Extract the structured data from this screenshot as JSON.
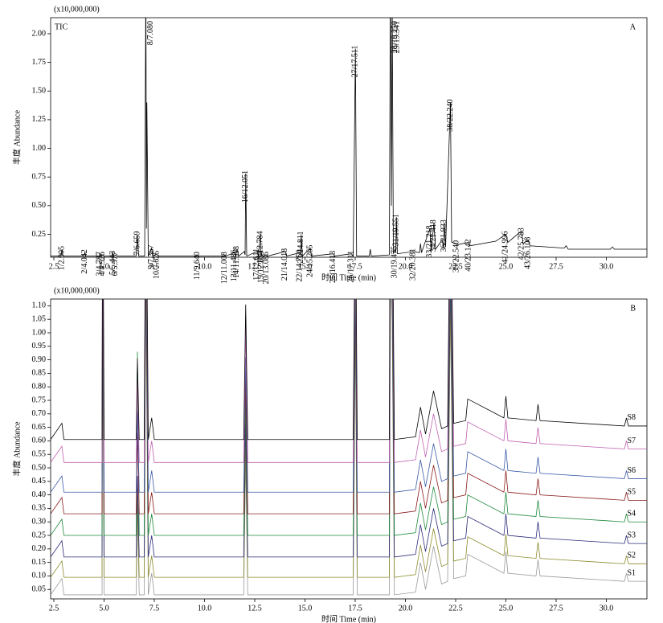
{
  "chart_data": [
    {
      "type": "line",
      "panel_label": "A",
      "scale_label": "(x10,000,000)",
      "xlabel": "时间 Time (min)",
      "ylabel": "丰度 Abundance",
      "xlim": [
        2.34,
        32.02
      ],
      "ylim": [
        0.05,
        2.14
      ],
      "xticks": [
        2.5,
        {
          "value": 5,
          "label": "5.0"
        },
        7.5,
        {
          "value": 10,
          "label": "10.0"
        },
        12.5,
        {
          "value": 15,
          "label": "15.0"
        },
        17.5,
        {
          "value": 20,
          "label": "20.0"
        },
        22.5,
        {
          "value": 25,
          "label": "25.0"
        },
        27.5,
        {
          "value": 30,
          "label": "30.0"
        }
      ],
      "yticks": [
        0.25,
        {
          "value": 0.5,
          "label": "0.50"
        },
        0.75,
        {
          "value": 1,
          "label": "1.00"
        },
        1.25,
        {
          "value": 1.5,
          "label": "1.50"
        },
        1.75,
        {
          "value": 2,
          "label": "2.00"
        }
      ],
      "x": [
        2.34,
        2.85,
        2.905,
        2.95,
        3.99,
        4.042,
        4.09,
        4.75,
        4.787,
        4.86,
        4.926,
        5.0,
        5.4,
        5.443,
        5.5,
        5.577,
        5.65,
        6.6,
        6.659,
        6.72,
        7.02,
        7.08,
        7.11,
        7.13,
        7.2,
        7.367,
        7.42,
        7.625,
        7.68,
        9.6,
        9.64,
        9.7,
        10.97,
        11.008,
        11.05,
        11.486,
        11.55,
        11.618,
        11.7,
        11.98,
        12.02,
        12.051,
        12.1,
        12.611,
        12.68,
        12.784,
        12.81,
        12.834,
        12.9,
        13.086,
        13.15,
        14.018,
        14.08,
        14.75,
        14.78,
        14.811,
        14.87,
        15.265,
        15.32,
        16.413,
        16.47,
        17.311,
        17.4,
        17.511,
        17.57,
        18.2,
        18.25,
        18.3,
        19.2,
        19.25,
        19.3,
        19.341,
        19.4,
        19.475,
        19.52,
        19.551,
        19.6,
        20.381,
        20.7,
        20.75,
        20.8,
        21.218,
        21.28,
        21.418,
        21.5,
        21.829,
        21.9,
        21.933,
        22.0,
        22.24,
        22.3,
        22.54,
        22.6,
        23.142,
        23.2,
        24.5,
        24.996,
        25.1,
        25.783,
        25.85,
        26.108,
        26.2,
        27.9,
        28.0,
        28.1,
        30.2,
        30.3,
        30.4,
        32.02
      ],
      "series": [
        {
          "name": "TIC",
          "color": "#000000",
          "values": [
            0.06,
            0.06,
            0.12,
            0.06,
            0.06,
            0.09,
            0.06,
            0.06,
            0.07,
            0.06,
            0.07,
            0.06,
            0.06,
            0.08,
            0.06,
            0.07,
            0.06,
            0.06,
            0.25,
            0.06,
            0.06,
            2.5,
            0.3,
            1.4,
            0.06,
            0.13,
            0.06,
            0.08,
            0.06,
            0.06,
            0.07,
            0.06,
            0.06,
            0.07,
            0.06,
            0.09,
            0.06,
            0.12,
            0.06,
            0.1,
            0.07,
            0.78,
            0.06,
            0.1,
            0.06,
            0.25,
            0.07,
            0.08,
            0.06,
            0.07,
            0.06,
            0.1,
            0.06,
            0.09,
            0.07,
            0.25,
            0.06,
            0.13,
            0.06,
            0.08,
            0.06,
            0.08,
            0.06,
            1.87,
            0.06,
            0.06,
            0.12,
            0.06,
            0.07,
            2.5,
            0.5,
            2.3,
            0.08,
            0.12,
            0.09,
            0.4,
            0.08,
            0.1,
            0.09,
            0.17,
            0.09,
            0.3,
            0.1,
            0.35,
            0.12,
            0.2,
            0.13,
            0.35,
            0.14,
            1.4,
            0.18,
            0.17,
            0.16,
            0.18,
            0.15,
            0.19,
            0.25,
            0.18,
            0.28,
            0.17,
            0.2,
            0.15,
            0.13,
            0.15,
            0.12,
            0.12,
            0.14,
            0.12,
            0.12
          ]
        }
      ],
      "peaks": [
        {
          "label": "1/2.905",
          "rt": 2.905,
          "height": 0.12
        },
        {
          "label": "2/4.042",
          "rt": 4.042,
          "height": 0.09
        },
        {
          "label": "3/4.787",
          "rt": 4.787,
          "height": 0.07
        },
        {
          "label": "4/4.926",
          "rt": 4.926,
          "height": 0.07
        },
        {
          "label": "5/5.443",
          "rt": 5.443,
          "height": 0.08
        },
        {
          "label": "6/5.577",
          "rt": 5.577,
          "height": 0.07
        },
        {
          "label": "7/6.659",
          "rt": 6.659,
          "height": 0.25
        },
        {
          "label": "8/7.080",
          "rt": 7.08,
          "height": 2.5
        },
        {
          "label": "9/7.367",
          "rt": 7.367,
          "height": 0.13
        },
        {
          "label": "10/7.625",
          "rt": 7.625,
          "height": 0.08
        },
        {
          "label": "11/9.640",
          "rt": 9.64,
          "height": 0.07
        },
        {
          "label": "12/11.008",
          "rt": 11.008,
          "height": 0.07
        },
        {
          "label": "13/11.486",
          "rt": 11.486,
          "height": 0.09
        },
        {
          "label": "14/11.618",
          "rt": 11.618,
          "height": 0.12
        },
        {
          "label": "16/12.051",
          "rt": 12.051,
          "height": 0.78
        },
        {
          "label": "17/12.611",
          "rt": 12.611,
          "height": 0.1
        },
        {
          "label": "18/12.784",
          "rt": 12.784,
          "height": 0.25
        },
        {
          "label": "19/12.834",
          "rt": 12.834,
          "height": 0.08
        },
        {
          "label": "20/13.086",
          "rt": 13.086,
          "height": 0.07
        },
        {
          "label": "21/14.018",
          "rt": 14.018,
          "height": 0.1
        },
        {
          "label": "22/14.750",
          "rt": 14.75,
          "height": 0.09
        },
        {
          "label": "23/14.811",
          "rt": 14.811,
          "height": 0.25
        },
        {
          "label": "24/15.265",
          "rt": 15.265,
          "height": 0.13
        },
        {
          "label": "25/16.413",
          "rt": 16.413,
          "height": 0.08
        },
        {
          "label": "26/17.311",
          "rt": 17.311,
          "height": 0.08
        },
        {
          "label": "27/17.511",
          "rt": 17.511,
          "height": 1.87
        },
        {
          "label": "28/19.250",
          "rt": 19.25,
          "height": 2.5
        },
        {
          "label": "29/19.341",
          "rt": 19.341,
          "height": 2.3
        },
        {
          "label": "30/19.475",
          "rt": 19.475,
          "height": 0.12
        },
        {
          "label": "31/19.551",
          "rt": 19.551,
          "height": 0.4
        },
        {
          "label": "32/20.381",
          "rt": 20.381,
          "height": 0.1
        },
        {
          "label": "33/21.218",
          "rt": 21.218,
          "height": 0.3
        },
        {
          "label": "34/21.418",
          "rt": 21.418,
          "height": 0.35
        },
        {
          "label": "36/21.933",
          "rt": 21.933,
          "height": 0.35
        },
        {
          "label": "38/22.240",
          "rt": 22.24,
          "height": 1.4
        },
        {
          "label": "39/22.540",
          "rt": 22.54,
          "height": 0.17
        },
        {
          "label": "40/23.142",
          "rt": 23.142,
          "height": 0.18
        },
        {
          "label": "41/24.996",
          "rt": 24.996,
          "height": 0.25
        },
        {
          "label": "42/25.783",
          "rt": 25.783,
          "height": 0.28
        },
        {
          "label": "43/26.108",
          "rt": 26.108,
          "height": 0.2
        }
      ]
    },
    {
      "type": "line",
      "panel_label": "B",
      "scale_label": "(x10,000,000)",
      "xlabel": "时间 Time (min)",
      "ylabel": "丰度 Abundance",
      "xlim": [
        2.34,
        32.02
      ],
      "ylim": [
        0.015,
        1.125
      ],
      "xticks": [
        2.5,
        {
          "value": 5,
          "label": "5.0"
        },
        7.5,
        {
          "value": 10,
          "label": "10.0"
        },
        12.5,
        {
          "value": 15,
          "label": "15.0"
        },
        17.5,
        {
          "value": 20,
          "label": "20.0"
        },
        22.5,
        {
          "value": 25,
          "label": "25.0"
        },
        27.5,
        {
          "value": 30,
          "label": "30.0"
        }
      ],
      "yticks": [
        0.05,
        {
          "value": 0.1,
          "label": "0.10"
        },
        0.15,
        {
          "value": 0.2,
          "label": "0.20"
        },
        0.25,
        {
          "value": 0.3,
          "label": "0.30"
        },
        0.35,
        {
          "value": 0.4,
          "label": "0.40"
        },
        0.45,
        {
          "value": 0.5,
          "label": "0.50"
        },
        0.55,
        {
          "value": 0.6,
          "label": "0.60"
        },
        0.65,
        {
          "value": 0.7,
          "label": "0.70"
        },
        0.75,
        {
          "value": 0.8,
          "label": "0.80"
        },
        0.85,
        {
          "value": 0.9,
          "label": "0.90"
        },
        0.95,
        {
          "value": 1,
          "label": "1.00"
        },
        1.05,
        {
          "value": 1.1,
          "label": "1.10"
        }
      ],
      "x": [
        2.34,
        2.9,
        3.0,
        4.9,
        4.93,
        5.0,
        6.6,
        6.66,
        6.75,
        7.0,
        7.08,
        7.2,
        7.37,
        7.5,
        11.95,
        12.05,
        12.15,
        17.4,
        17.51,
        17.6,
        19.2,
        19.25,
        19.34,
        19.45,
        20.5,
        20.75,
        21.0,
        21.4,
        21.8,
        22.1,
        22.24,
        22.4,
        23.0,
        23.1,
        24.9,
        25.0,
        25.1,
        26.5,
        26.6,
        26.7,
        30.9,
        31.0,
        31.1,
        32.02
      ],
      "series": [
        {
          "name": "S1",
          "color": "#9a9a9a",
          "values": [
            0.03,
            0.09,
            0.03,
            0.03,
            1.23,
            0.03,
            0.03,
            0.33,
            0.03,
            0.03,
            1.23,
            0.03,
            0.11,
            0.03,
            0.03,
            0.53,
            0.03,
            0.03,
            1.03,
            0.03,
            0.03,
            1.23,
            1.03,
            0.03,
            0.04,
            0.15,
            0.05,
            0.21,
            0.07,
            0.08,
            1.08,
            0.09,
            0.1,
            0.18,
            0.11,
            0.19,
            0.11,
            0.1,
            0.16,
            0.1,
            0.08,
            0.11,
            0.08,
            0.08
          ]
        },
        {
          "name": "S2",
          "color": "#8c8c2e",
          "values": [
            0.095,
            0.155,
            0.095,
            0.095,
            1.295,
            0.095,
            0.095,
            0.395,
            0.095,
            0.095,
            1.295,
            0.095,
            0.175,
            0.095,
            0.095,
            0.595,
            0.095,
            0.095,
            1.095,
            0.095,
            0.095,
            1.295,
            1.095,
            0.095,
            0.105,
            0.215,
            0.115,
            0.275,
            0.135,
            0.145,
            1.145,
            0.155,
            0.165,
            0.245,
            0.175,
            0.255,
            0.175,
            0.165,
            0.225,
            0.165,
            0.145,
            0.175,
            0.145,
            0.145
          ]
        },
        {
          "name": "S3",
          "color": "#2a2a7a",
          "values": [
            0.17,
            0.23,
            0.17,
            0.17,
            1.37,
            0.17,
            0.17,
            0.47,
            0.17,
            0.17,
            1.37,
            0.17,
            0.25,
            0.17,
            0.17,
            0.67,
            0.17,
            0.17,
            1.17,
            0.17,
            0.17,
            1.37,
            1.17,
            0.17,
            0.18,
            0.29,
            0.19,
            0.35,
            0.21,
            0.22,
            1.22,
            0.23,
            0.24,
            0.32,
            0.25,
            0.33,
            0.25,
            0.24,
            0.3,
            0.24,
            0.22,
            0.25,
            0.22,
            0.22
          ]
        },
        {
          "name": "S4",
          "color": "#1e8a3c",
          "values": [
            0.25,
            0.31,
            0.25,
            0.25,
            1.45,
            0.25,
            0.25,
            0.93,
            0.25,
            0.25,
            1.45,
            0.25,
            0.33,
            0.25,
            0.25,
            0.75,
            0.25,
            0.25,
            1.25,
            0.25,
            0.25,
            1.45,
            1.25,
            0.25,
            0.26,
            0.37,
            0.27,
            0.43,
            0.29,
            0.3,
            1.3,
            0.31,
            0.32,
            0.4,
            0.33,
            0.41,
            0.33,
            0.32,
            0.38,
            0.32,
            0.3,
            0.33,
            0.3,
            0.3
          ]
        },
        {
          "name": "S5",
          "color": "#8b1a1a",
          "values": [
            0.33,
            0.39,
            0.33,
            0.33,
            1.53,
            0.33,
            0.33,
            0.63,
            0.33,
            0.33,
            1.53,
            0.33,
            0.41,
            0.33,
            0.33,
            0.83,
            0.33,
            0.33,
            1.33,
            0.33,
            0.33,
            1.53,
            1.33,
            0.33,
            0.34,
            0.45,
            0.35,
            0.51,
            0.37,
            0.38,
            1.38,
            0.39,
            0.4,
            0.48,
            0.41,
            0.49,
            0.41,
            0.4,
            0.46,
            0.4,
            0.38,
            0.41,
            0.38,
            0.38
          ]
        },
        {
          "name": "S6",
          "color": "#3a5aa8",
          "values": [
            0.41,
            0.47,
            0.41,
            0.41,
            1.61,
            0.41,
            0.41,
            0.71,
            0.41,
            0.41,
            1.61,
            0.41,
            0.49,
            0.41,
            0.41,
            0.91,
            0.41,
            0.41,
            1.41,
            0.41,
            0.41,
            1.61,
            1.41,
            0.41,
            0.42,
            0.53,
            0.43,
            0.59,
            0.45,
            0.46,
            1.46,
            0.47,
            0.48,
            0.56,
            0.49,
            0.57,
            0.49,
            0.48,
            0.54,
            0.48,
            0.46,
            0.49,
            0.46,
            0.46
          ]
        },
        {
          "name": "S7",
          "color": "#c060b0",
          "values": [
            0.52,
            0.58,
            0.52,
            0.52,
            1.72,
            0.52,
            0.52,
            0.82,
            0.52,
            0.52,
            1.72,
            0.52,
            0.6,
            0.52,
            0.52,
            1.02,
            0.52,
            0.52,
            1.52,
            0.52,
            0.52,
            1.72,
            1.52,
            0.52,
            0.53,
            0.64,
            0.54,
            0.7,
            0.56,
            0.57,
            1.57,
            0.58,
            0.59,
            0.67,
            0.6,
            0.68,
            0.6,
            0.59,
            0.65,
            0.59,
            0.57,
            0.6,
            0.57,
            0.57
          ]
        },
        {
          "name": "S8",
          "color": "#000000",
          "values": [
            0.605,
            0.665,
            0.605,
            0.605,
            1.805,
            0.605,
            0.605,
            0.905,
            0.605,
            0.605,
            1.805,
            0.605,
            0.685,
            0.605,
            0.605,
            1.105,
            0.605,
            0.605,
            1.605,
            0.605,
            0.605,
            1.805,
            1.605,
            0.605,
            0.615,
            0.725,
            0.625,
            0.785,
            0.645,
            0.655,
            1.655,
            0.665,
            0.675,
            0.755,
            0.685,
            0.765,
            0.685,
            0.675,
            0.735,
            0.675,
            0.655,
            0.685,
            0.655,
            0.655
          ]
        }
      ]
    }
  ]
}
